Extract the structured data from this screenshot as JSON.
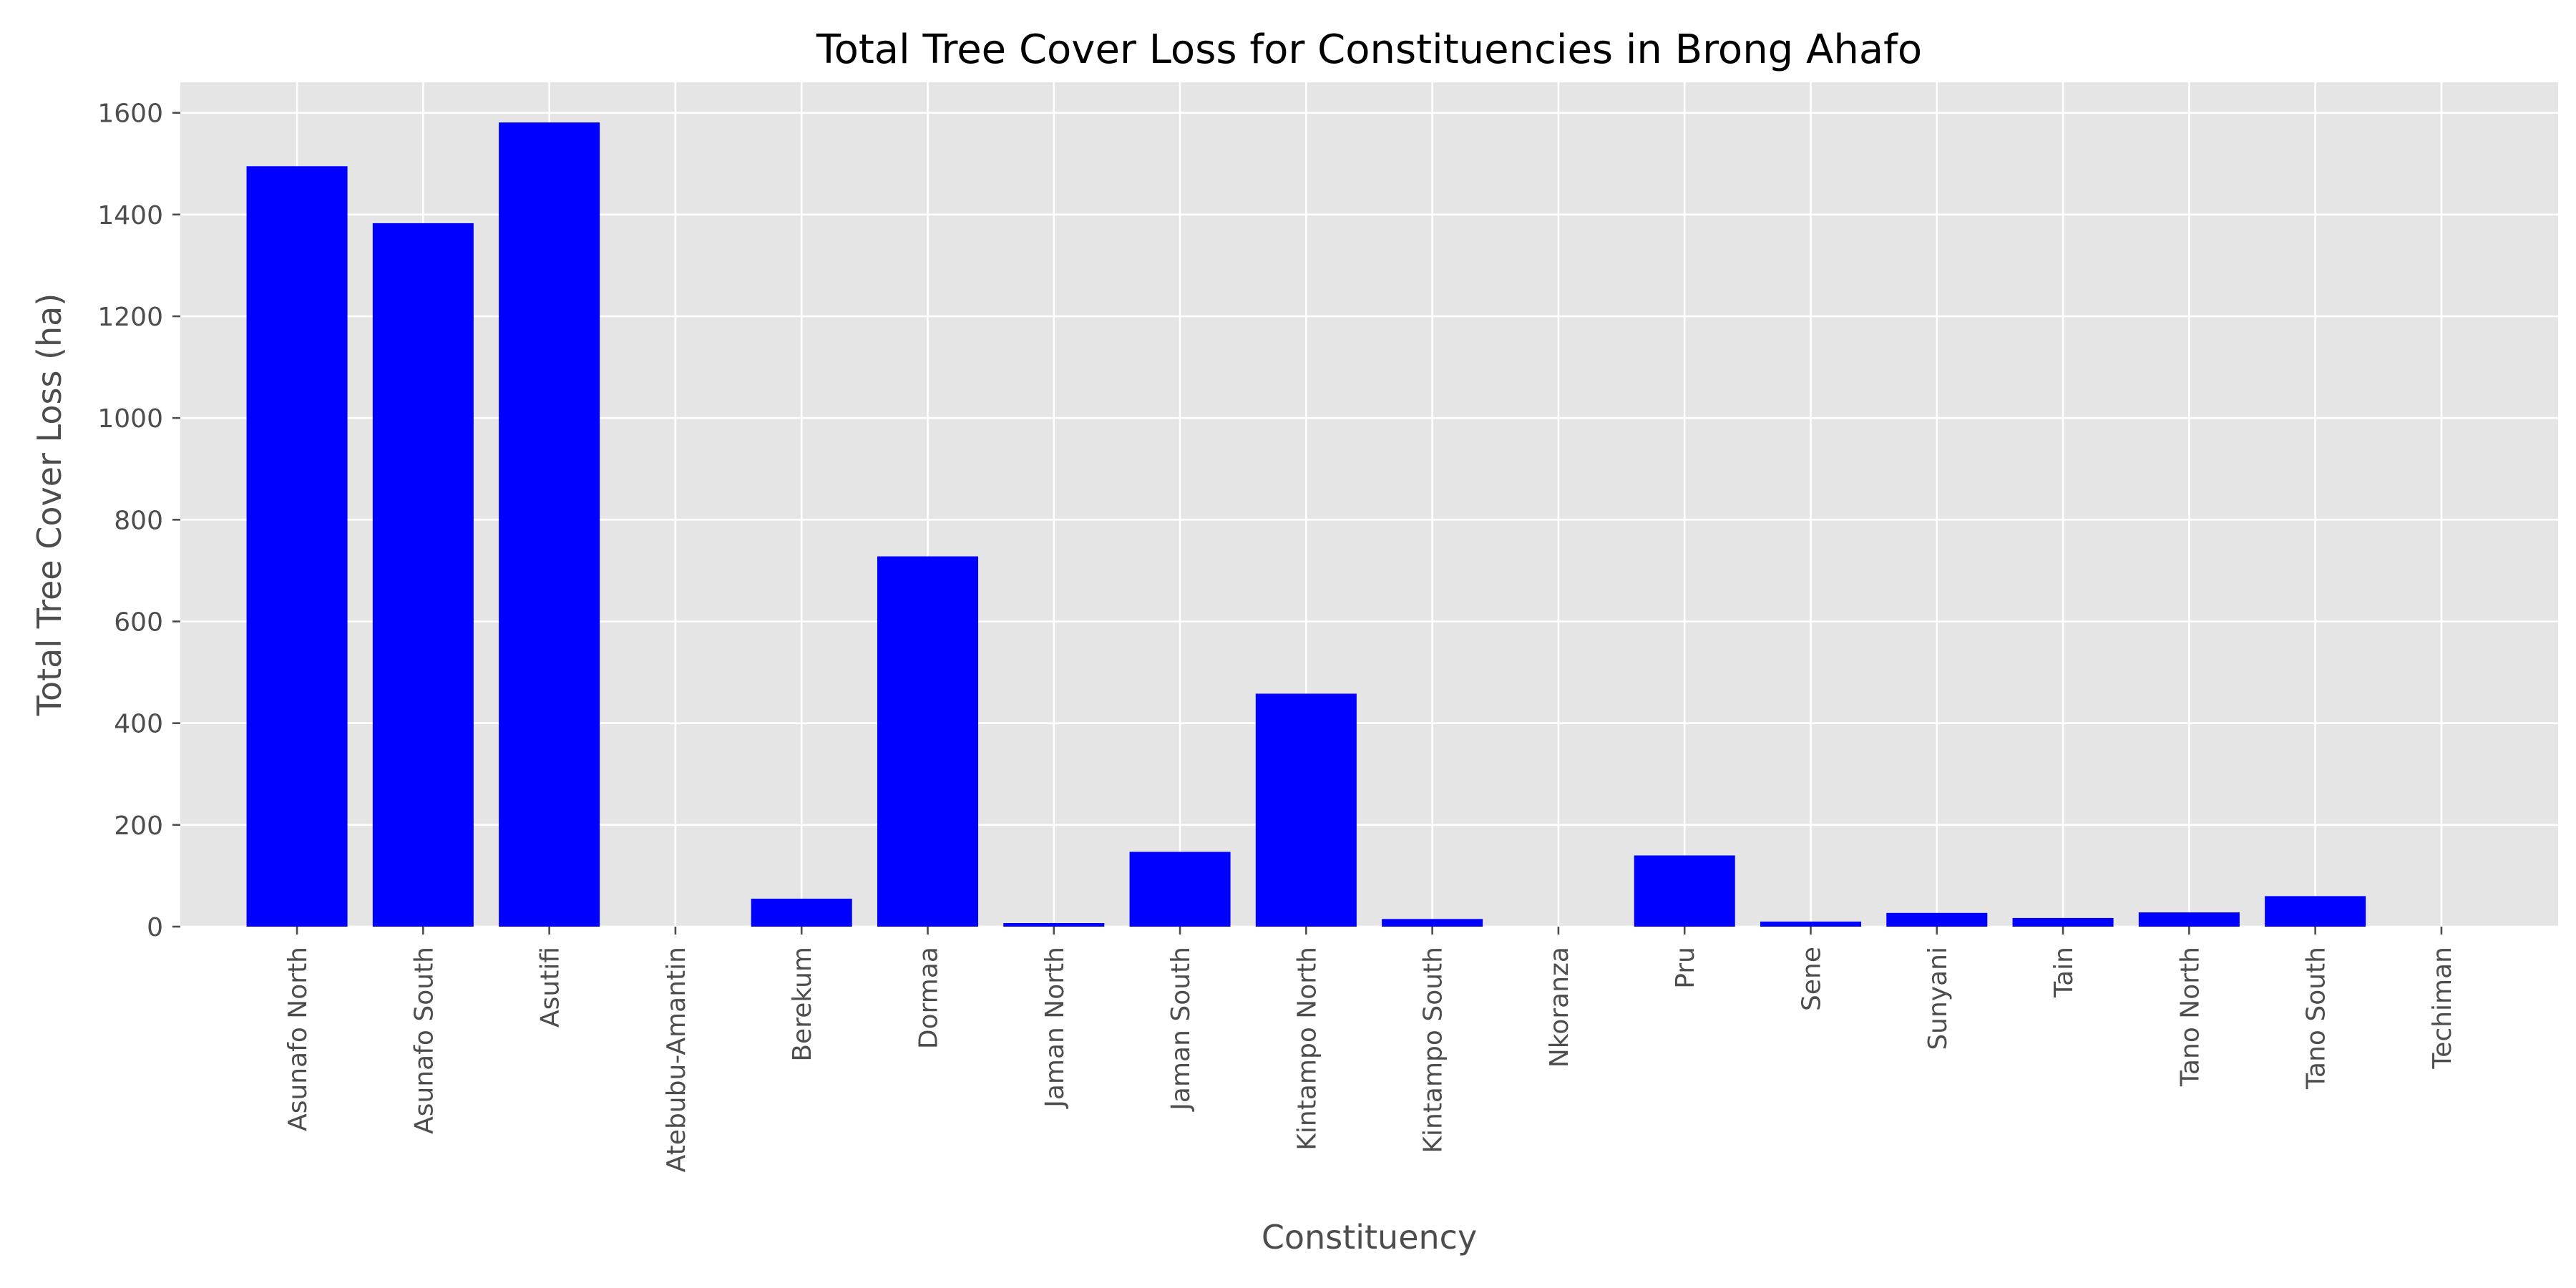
{
  "chart_data": {
    "type": "bar",
    "title": "Total Tree Cover Loss for Constituencies in Brong Ahafo",
    "xlabel": "Constituency",
    "ylabel": "Total Tree Cover Loss (ha)",
    "ylim": [
      0,
      1660
    ],
    "yticks": [
      0,
      200,
      400,
      600,
      800,
      1000,
      1200,
      1400,
      1600
    ],
    "grid": true,
    "legend": "none",
    "categories": [
      "Asunafo North",
      "Asunafo South",
      "Asutifi",
      "Atebubu-Amantin",
      "Berekum",
      "Dormaa",
      "Jaman North",
      "Jaman South",
      "Kintampo North",
      "Kintampo South",
      "Nkoranza",
      "Pru",
      "Sene",
      "Sunyani",
      "Tain",
      "Tano North",
      "Tano South",
      "Techiman"
    ],
    "values": [
      1495,
      1383,
      1581,
      0,
      55,
      728,
      7,
      147,
      458,
      15,
      0,
      140,
      10,
      27,
      17,
      28,
      60,
      0
    ],
    "colors": {
      "bar": "#0000ff",
      "plot_background": "#e5e5e5",
      "grid": "#ffffff",
      "text": "#4d4d4d",
      "title": "#000000"
    }
  }
}
